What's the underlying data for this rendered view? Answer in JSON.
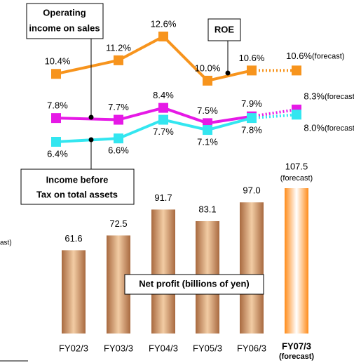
{
  "chart_data": {
    "type": "bar",
    "categories": [
      "FY02/3",
      "FY03/3",
      "FY04/3",
      "FY05/3",
      "FY06/3",
      "FY07/3"
    ],
    "category_note": "(forecast)",
    "values": [
      61.6,
      72.5,
      91.7,
      83.1,
      97.0,
      107.5
    ],
    "value_labels": [
      "61.6",
      "72.5",
      "91.7",
      "83.1",
      "97.0",
      "107.5"
    ],
    "value_note": "(forecast)",
    "color": "#c98a5c",
    "forecast_color": "#ff8c1a",
    "bar_title": "Net profit (billions of yen)",
    "lines": [
      {
        "name": [
          "ROE"
        ],
        "color": "#f7941d",
        "values": [
          10.4,
          11.2,
          12.6,
          10.0,
          10.6,
          10.6
        ],
        "value_labels": [
          "10.4%",
          "11.2%",
          "12.6%",
          "10.0%",
          "10.6%",
          "10.6%"
        ],
        "note": "(forecast)"
      },
      {
        "name": [
          "Operating",
          "income on sales"
        ],
        "color": "#e619e6",
        "values": [
          7.8,
          7.7,
          8.4,
          7.5,
          7.9,
          8.3
        ],
        "value_labels": [
          "7.8%",
          "7.7%",
          "8.4%",
          "7.5%",
          "7.9%",
          "8.3%"
        ],
        "note": "(forecast)"
      },
      {
        "name": [
          "Income before",
          "Tax on total assets"
        ],
        "color": "#33e6f0",
        "values": [
          6.4,
          6.6,
          7.7,
          7.1,
          7.8,
          8.0
        ],
        "value_labels": [
          "6.4%",
          "6.6%",
          "7.7%",
          "7.1%",
          "7.8%",
          "8.0%"
        ],
        "note": "(forecast)"
      }
    ],
    "fragment": "ast)"
  }
}
